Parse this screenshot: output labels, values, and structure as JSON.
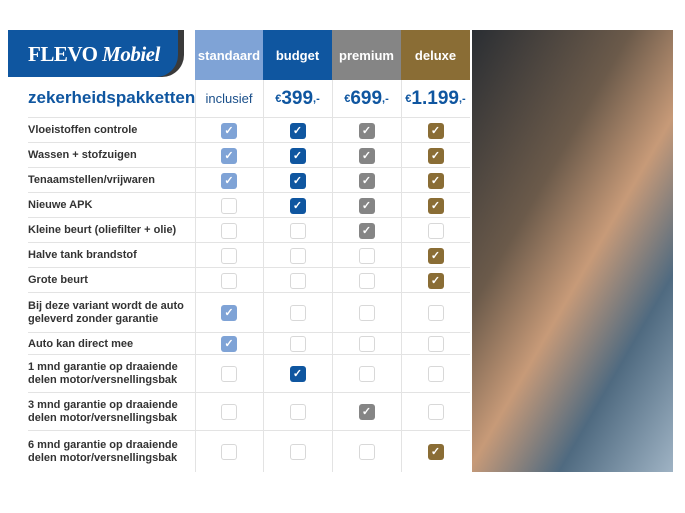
{
  "logo": {
    "brand": "FLEVO",
    "sub": "Mobiel"
  },
  "title": "zekerheidspakketten",
  "packages": [
    {
      "name": "standaard",
      "price": "inclusief",
      "color": "#7fa3d6"
    },
    {
      "name": "budget",
      "currency": "€",
      "price": "399",
      "suffix": ",-",
      "color": "#0f56a0"
    },
    {
      "name": "premium",
      "currency": "€",
      "price": "699",
      "suffix": ",-",
      "color": "#858585"
    },
    {
      "name": "deluxe",
      "currency": "€",
      "price": "1.199",
      "suffix": ",-",
      "color": "#8a6d35"
    }
  ],
  "features": [
    {
      "label": "Vloeistoffen controle",
      "checks": [
        1,
        1,
        1,
        1
      ]
    },
    {
      "label": "Wassen + stofzuigen",
      "checks": [
        1,
        1,
        1,
        1
      ]
    },
    {
      "label": "Tenaamstellen/vrijwaren",
      "checks": [
        1,
        1,
        1,
        1
      ]
    },
    {
      "label": "Nieuwe APK",
      "checks": [
        0,
        1,
        1,
        1
      ]
    },
    {
      "label": "Kleine beurt (oliefilter + olie)",
      "checks": [
        0,
        0,
        1,
        0
      ]
    },
    {
      "label": "Halve tank brandstof",
      "checks": [
        0,
        0,
        0,
        1
      ]
    },
    {
      "label": "Grote beurt",
      "checks": [
        0,
        0,
        0,
        1
      ]
    },
    {
      "label": "Bij deze variant wordt de auto geleverd zonder garantie",
      "checks": [
        1,
        0,
        0,
        0
      ]
    },
    {
      "label": "Auto kan direct mee",
      "checks": [
        1,
        0,
        0,
        0
      ]
    },
    {
      "label": "1 mnd garantie op draaiende delen motor/versnellingsbak",
      "checks": [
        0,
        1,
        0,
        0
      ]
    },
    {
      "label": "3 mnd garantie op draaiende delen motor/versnellingsbak",
      "checks": [
        0,
        0,
        1,
        0
      ]
    },
    {
      "label": "6 mnd garantie op draaiende delen motor/versnellingsbak",
      "checks": [
        0,
        0,
        0,
        1
      ]
    }
  ]
}
